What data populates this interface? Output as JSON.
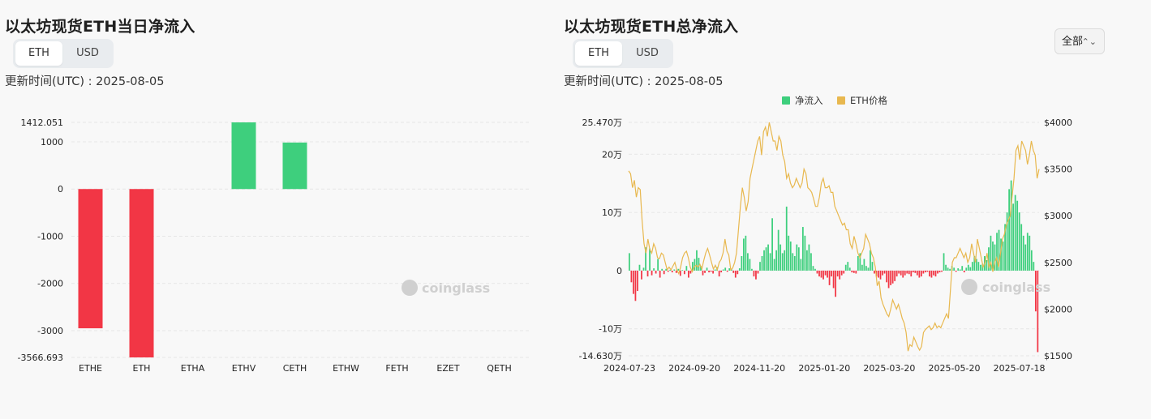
{
  "left": {
    "title": "以太坊现货ETH当日净流入",
    "toggle": [
      "ETH",
      "USD"
    ],
    "active_toggle": "ETH",
    "updated": "更新时间(UTC) : 2025-08-05",
    "watermark": "coinglass"
  },
  "right": {
    "title": "以太坊现货ETH总净流入",
    "toggle": [
      "ETH",
      "USD"
    ],
    "active_toggle": "ETH",
    "updated": "更新时间(UTC) : 2025-08-05",
    "dropdown": "全部",
    "watermark": "coinglass",
    "legend": [
      "净流入",
      "ETH价格"
    ]
  },
  "colors": {
    "positive": "#3ecf7d",
    "negative": "#f23645",
    "price": "#e8b84f",
    "grid": "#e6e6e6"
  },
  "chart_data": [
    {
      "type": "bar",
      "categories": [
        "ETHE",
        "ETH",
        "ETHA",
        "ETHV",
        "CETH",
        "ETHW",
        "FETH",
        "EZET",
        "QETH"
      ],
      "values": [
        -2950,
        -3566.693,
        0,
        1412.051,
        985,
        0,
        0,
        0,
        0
      ],
      "ylim": [
        -3566.693,
        1412.051
      ],
      "yticks": [
        1412.051,
        1000,
        0,
        -1000,
        -2000,
        -3000,
        -3566.693
      ],
      "ytick_labels": [
        "1412.051",
        "1000",
        "0",
        "-1000",
        "-2000",
        "-3000",
        "-3566.693"
      ],
      "grid": true
    },
    {
      "type": "bar",
      "x_labels": [
        "2024-07-23",
        "2024-09-20",
        "2024-11-20",
        "2025-01-20",
        "2025-03-20",
        "2025-05-20",
        "2025-07-18"
      ],
      "x_range": [
        "2024-07-23",
        "2025-08-05"
      ],
      "series": [
        {
          "name": "净流入",
          "axis": "left",
          "values": [
            30000,
            -20000,
            -40000,
            -52000,
            -35000,
            10000,
            -15000,
            5000,
            40000,
            -10000,
            38000,
            -8000,
            4000,
            -5000,
            20000,
            -12000,
            3000,
            -6000,
            3000,
            -2000,
            1500,
            -3000,
            2000,
            -4000,
            3000,
            -9000,
            1000,
            -6000,
            8000,
            -12000,
            -5000,
            15000,
            20000,
            35000,
            22000,
            8000,
            -8000,
            -4000,
            5000,
            -3000,
            -2000,
            -5000,
            2000,
            6000,
            -10000,
            -3000,
            2000,
            5000,
            -2000,
            4000,
            3000,
            -4000,
            -12000,
            -6000,
            4000,
            25000,
            55000,
            60000,
            30000,
            20000,
            3000,
            -10000,
            -15000,
            -5000,
            15000,
            25000,
            35000,
            40000,
            45000,
            30000,
            90000,
            20000,
            35000,
            70000,
            45000,
            30000,
            35000,
            110000,
            60000,
            50000,
            30000,
            25000,
            45000,
            40000,
            20000,
            75000,
            60000,
            35000,
            45000,
            30000,
            8000,
            3000,
            -5000,
            -10000,
            -12000,
            -15000,
            -8000,
            -12000,
            -25000,
            -10000,
            -30000,
            -45000,
            -10000,
            -15000,
            -8000,
            -5000,
            10000,
            15000,
            5000,
            -3000,
            -4000,
            -5000,
            25000,
            30000,
            10000,
            20000,
            8000,
            5000,
            35000,
            15000,
            -5000,
            -10000,
            -12000,
            -15000,
            -8000,
            -5000,
            -20000,
            -30000,
            -25000,
            -22000,
            -18000,
            -10000,
            -5000,
            -8000,
            -12000,
            -8000,
            -5000,
            -6000,
            -10000,
            -3000,
            -4000,
            -8000,
            -12000,
            -10000,
            -5000,
            -3000,
            -2000,
            -10000,
            -12000,
            -8000,
            -10000,
            -5000,
            -3000,
            -2000,
            30000,
            10000,
            5000,
            3000,
            8000,
            5000,
            -2000,
            4000,
            2000,
            8000,
            -3000,
            5000,
            10000,
            6000,
            15000,
            25000,
            20000,
            15000,
            10000,
            12000,
            25000,
            18000,
            40000,
            60000,
            50000,
            45000,
            65000,
            70000,
            55000,
            50000,
            80000,
            100000,
            140000,
            155000,
            115000,
            130000,
            120000,
            100000,
            80000,
            60000,
            45000,
            65000,
            60000,
            35000,
            15000,
            -70000,
            -140000
          ],
          "color": "#3ecf7d"
        },
        {
          "name": "ETH价格",
          "axis": "right",
          "type": "line",
          "values": [
            3480,
            3450,
            3300,
            3380,
            3200,
            3300,
            3280,
            2950,
            2700,
            2600,
            2750,
            2640,
            2600,
            2700,
            2650,
            2550,
            2540,
            2600,
            2580,
            2500,
            2420,
            2450,
            2420,
            2460,
            2500,
            2420,
            2380,
            2450,
            2550,
            2600,
            2620,
            2550,
            2450,
            2400,
            2450,
            2470,
            2450,
            2480,
            2430,
            2520,
            2600,
            2650,
            2580,
            2500,
            2430,
            2470,
            2420,
            2500,
            2530,
            2600,
            2750,
            2620,
            2580,
            2420,
            2440,
            2500,
            2600,
            2850,
            3100,
            3300,
            3200,
            3050,
            3150,
            3400,
            3500,
            3600,
            3700,
            3800,
            3850,
            3650,
            3900,
            3950,
            3850,
            4000,
            3900,
            3800,
            3800,
            3700,
            3850,
            3800,
            3650,
            3580,
            3400,
            3450,
            3350,
            3300,
            3330,
            3400,
            3350,
            3300,
            3350,
            3500,
            3450,
            3300,
            3280,
            3250,
            3180,
            3100,
            3100,
            3200,
            3350,
            3400,
            3300,
            3300,
            3320,
            3250,
            3250,
            3100,
            3050,
            3000,
            2950,
            2900,
            2920,
            2850,
            2850,
            2700,
            2650,
            2780,
            2700,
            2600,
            2550,
            2600,
            2650,
            2800,
            2750,
            2700,
            2600,
            2550,
            2450,
            2250,
            2300,
            2120,
            2050,
            2000,
            1950,
            1920,
            2000,
            2100,
            2050,
            2000,
            2050,
            1980,
            1900,
            1850,
            1750,
            1550,
            1620,
            1600,
            1700,
            1650,
            1600,
            1560,
            1600,
            1750,
            1780,
            1800,
            1820,
            1780,
            1800,
            1850,
            1800,
            1820,
            1800,
            1850,
            1900,
            1950,
            1900,
            2200,
            2500,
            2550,
            2550,
            2600,
            2650,
            2600,
            2550,
            2600,
            2500,
            2550,
            2700,
            2600,
            2500,
            2750,
            2650,
            2550,
            2450,
            2500,
            2600,
            2450,
            2500,
            2400,
            2500,
            2550,
            2450,
            2600,
            2750,
            2800,
            2900,
            2950,
            3000,
            3200,
            3400,
            3700,
            3750,
            3600,
            3800,
            3750,
            3700,
            3550,
            3650,
            3800,
            3700,
            3650,
            3400,
            3500
          ],
          "color": "#e8b84f"
        }
      ],
      "y_left": {
        "ylim": [
          -146300,
          254700
        ],
        "tick_labels": [
          "25.470万",
          "20万",
          "10万",
          "0",
          "-10万",
          "-14.630万"
        ],
        "ticks": [
          254700,
          200000,
          100000,
          0,
          -100000,
          -146300
        ]
      },
      "y_right": {
        "ylim": [
          1500,
          4000
        ],
        "tick_labels": [
          "$4000",
          "$3500",
          "$3000",
          "$2500",
          "$2000",
          "$1500"
        ],
        "ticks": [
          4000,
          3500,
          3000,
          2500,
          2000,
          1500
        ]
      },
      "grid": true,
      "legend_position": "top"
    }
  ]
}
